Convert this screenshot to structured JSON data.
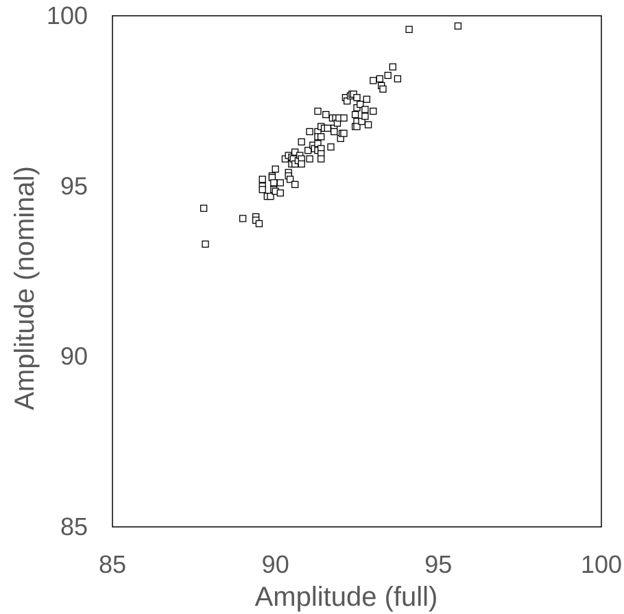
{
  "chart_data": {
    "type": "scatter",
    "title": "",
    "xlabel": "Amplitude (full)",
    "ylabel": "Amplitude (nominal)",
    "xlim": [
      85,
      100
    ],
    "ylim": [
      85,
      100
    ],
    "x_ticks": [
      "85",
      "90",
      "95",
      "100"
    ],
    "y_ticks": [
      "85",
      "90",
      "95",
      "100"
    ],
    "grid": false,
    "legend": "none",
    "marker": "hollow-square",
    "marker_color": "#000000",
    "text_color": "#595959",
    "points": [
      [
        87.8,
        94.35
      ],
      [
        87.85,
        93.3
      ],
      [
        89.0,
        94.05
      ],
      [
        89.4,
        94.1
      ],
      [
        89.4,
        94.0
      ],
      [
        89.5,
        93.9
      ],
      [
        89.6,
        95.2
      ],
      [
        89.6,
        95.0
      ],
      [
        89.6,
        94.9
      ],
      [
        89.75,
        94.7
      ],
      [
        89.85,
        94.7
      ],
      [
        89.9,
        95.3
      ],
      [
        89.9,
        95.25
      ],
      [
        89.95,
        95.1
      ],
      [
        89.95,
        94.9
      ],
      [
        90.0,
        95.5
      ],
      [
        90.0,
        94.85
      ],
      [
        90.15,
        95.1
      ],
      [
        90.15,
        94.8
      ],
      [
        90.3,
        95.8
      ],
      [
        90.4,
        95.9
      ],
      [
        90.4,
        95.4
      ],
      [
        90.4,
        95.3
      ],
      [
        90.45,
        95.2
      ],
      [
        90.5,
        95.85
      ],
      [
        90.5,
        95.65
      ],
      [
        90.55,
        95.8
      ],
      [
        90.6,
        96.0
      ],
      [
        90.6,
        95.65
      ],
      [
        90.6,
        95.05
      ],
      [
        90.7,
        95.75
      ],
      [
        90.75,
        95.9
      ],
      [
        90.8,
        96.3
      ],
      [
        90.8,
        95.8
      ],
      [
        90.8,
        95.65
      ],
      [
        91.0,
        96.05
      ],
      [
        91.05,
        95.8
      ],
      [
        91.05,
        96.6
      ],
      [
        91.15,
        96.2
      ],
      [
        91.2,
        96.1
      ],
      [
        91.3,
        97.2
      ],
      [
        91.3,
        96.6
      ],
      [
        91.3,
        96.45
      ],
      [
        91.3,
        96.25
      ],
      [
        91.3,
        96.05
      ],
      [
        91.4,
        96.75
      ],
      [
        91.4,
        96.45
      ],
      [
        91.4,
        96.1
      ],
      [
        91.4,
        95.95
      ],
      [
        91.4,
        95.8
      ],
      [
        91.5,
        96.7
      ],
      [
        91.55,
        97.1
      ],
      [
        91.6,
        96.7
      ],
      [
        91.7,
        96.15
      ],
      [
        91.75,
        97.0
      ],
      [
        91.8,
        96.7
      ],
      [
        91.8,
        96.6
      ],
      [
        91.85,
        97.0
      ],
      [
        91.9,
        96.85
      ],
      [
        91.95,
        97.0
      ],
      [
        92.0,
        96.4
      ],
      [
        92.05,
        96.55
      ],
      [
        92.1,
        96.55
      ],
      [
        92.1,
        97.0
      ],
      [
        92.15,
        97.6
      ],
      [
        92.2,
        97.5
      ],
      [
        92.3,
        97.65
      ],
      [
        92.35,
        97.7
      ],
      [
        92.4,
        97.7
      ],
      [
        92.45,
        97.1
      ],
      [
        92.45,
        96.75
      ],
      [
        92.5,
        97.6
      ],
      [
        92.5,
        97.3
      ],
      [
        92.5,
        96.9
      ],
      [
        92.5,
        96.75
      ],
      [
        92.6,
        97.4
      ],
      [
        92.65,
        96.9
      ],
      [
        92.75,
        97.25
      ],
      [
        92.75,
        97.05
      ],
      [
        92.8,
        97.55
      ],
      [
        92.85,
        96.8
      ],
      [
        93.0,
        98.1
      ],
      [
        93.0,
        97.2
      ],
      [
        93.2,
        98.15
      ],
      [
        93.25,
        97.95
      ],
      [
        93.3,
        97.85
      ],
      [
        93.45,
        98.25
      ],
      [
        93.6,
        98.5
      ],
      [
        93.75,
        98.15
      ],
      [
        94.1,
        99.6
      ],
      [
        95.6,
        99.7
      ]
    ]
  }
}
